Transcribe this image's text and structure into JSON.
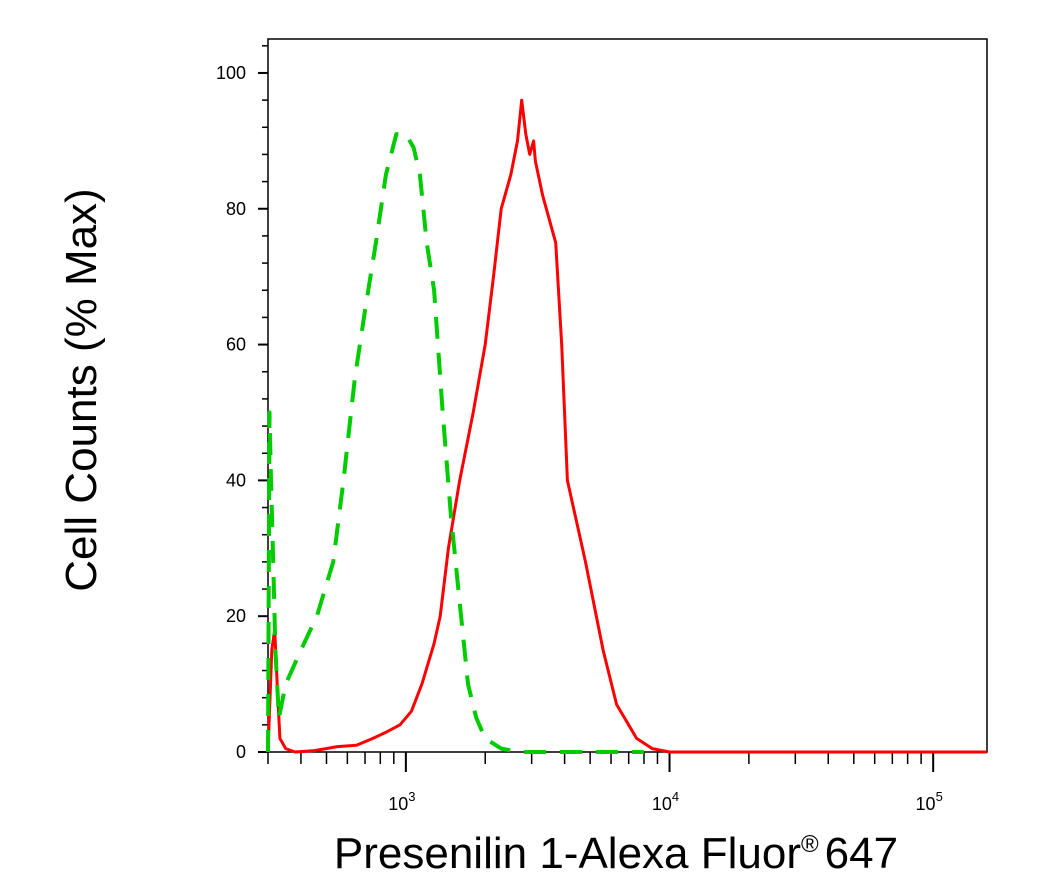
{
  "chart_data": {
    "type": "line",
    "ylabel": "Cell Counts (% Max)",
    "xlabel": {
      "main": "Presenilin 1-Alexa Fluor",
      "symbol": "®",
      "suffix": "647"
    },
    "y_ticks": [
      "0",
      "20",
      "40",
      "60",
      "80",
      "100"
    ],
    "x_ticks": [
      {
        "value": 1000,
        "base": "10",
        "exp": "3"
      },
      {
        "value": 10000,
        "base": "10",
        "exp": "4"
      },
      {
        "value": 100000,
        "base": "10",
        "exp": "5"
      }
    ],
    "xlim": [
      300,
      160000
    ],
    "ylim": [
      0,
      105
    ],
    "x_scale": "log",
    "grid": false,
    "series": [
      {
        "color": "#ff0000",
        "style": "solid",
        "points": [
          [
            300,
            0
          ],
          [
            310,
            15
          ],
          [
            318,
            18
          ],
          [
            325,
            10
          ],
          [
            333,
            2
          ],
          [
            350,
            0.5
          ],
          [
            380,
            0
          ],
          [
            450,
            0.2
          ],
          [
            550,
            0.8
          ],
          [
            650,
            1
          ],
          [
            750,
            2
          ],
          [
            850,
            3
          ],
          [
            950,
            4
          ],
          [
            1050,
            6
          ],
          [
            1150,
            10
          ],
          [
            1280,
            16
          ],
          [
            1350,
            20
          ],
          [
            1450,
            30
          ],
          [
            1600,
            40
          ],
          [
            1800,
            50
          ],
          [
            2000,
            60
          ],
          [
            2150,
            70
          ],
          [
            2300,
            80
          ],
          [
            2500,
            85
          ],
          [
            2650,
            90
          ],
          [
            2750,
            96
          ],
          [
            2850,
            91
          ],
          [
            2950,
            88
          ],
          [
            3050,
            90
          ],
          [
            3100,
            87
          ],
          [
            3300,
            82
          ],
          [
            3700,
            75
          ],
          [
            3900,
            60
          ],
          [
            4100,
            40
          ],
          [
            4800,
            28
          ],
          [
            5600,
            15
          ],
          [
            6300,
            7
          ],
          [
            7500,
            2
          ],
          [
            8600,
            0.5
          ],
          [
            10000,
            0
          ],
          [
            20000,
            0
          ],
          [
            100000,
            0
          ],
          [
            160000,
            0
          ]
        ]
      },
      {
        "color": "#00cc00",
        "style": "dashed",
        "points": [
          [
            300,
            0
          ],
          [
            304,
            50
          ],
          [
            308,
            40
          ],
          [
            314,
            28
          ],
          [
            320,
            15
          ],
          [
            330,
            5
          ],
          [
            350,
            10
          ],
          [
            400,
            15
          ],
          [
            460,
            20
          ],
          [
            530,
            28
          ],
          [
            580,
            40
          ],
          [
            640,
            55
          ],
          [
            700,
            65
          ],
          [
            770,
            75
          ],
          [
            840,
            85
          ],
          [
            920,
            91
          ],
          [
            1000,
            91
          ],
          [
            1070,
            89
          ],
          [
            1130,
            85
          ],
          [
            1200,
            75
          ],
          [
            1280,
            68
          ],
          [
            1380,
            50
          ],
          [
            1480,
            35
          ],
          [
            1600,
            22
          ],
          [
            1720,
            10
          ],
          [
            1850,
            5
          ],
          [
            2000,
            2
          ],
          [
            2300,
            0.5
          ],
          [
            2700,
            0
          ],
          [
            3500,
            0
          ],
          [
            8000,
            0
          ]
        ]
      }
    ]
  }
}
